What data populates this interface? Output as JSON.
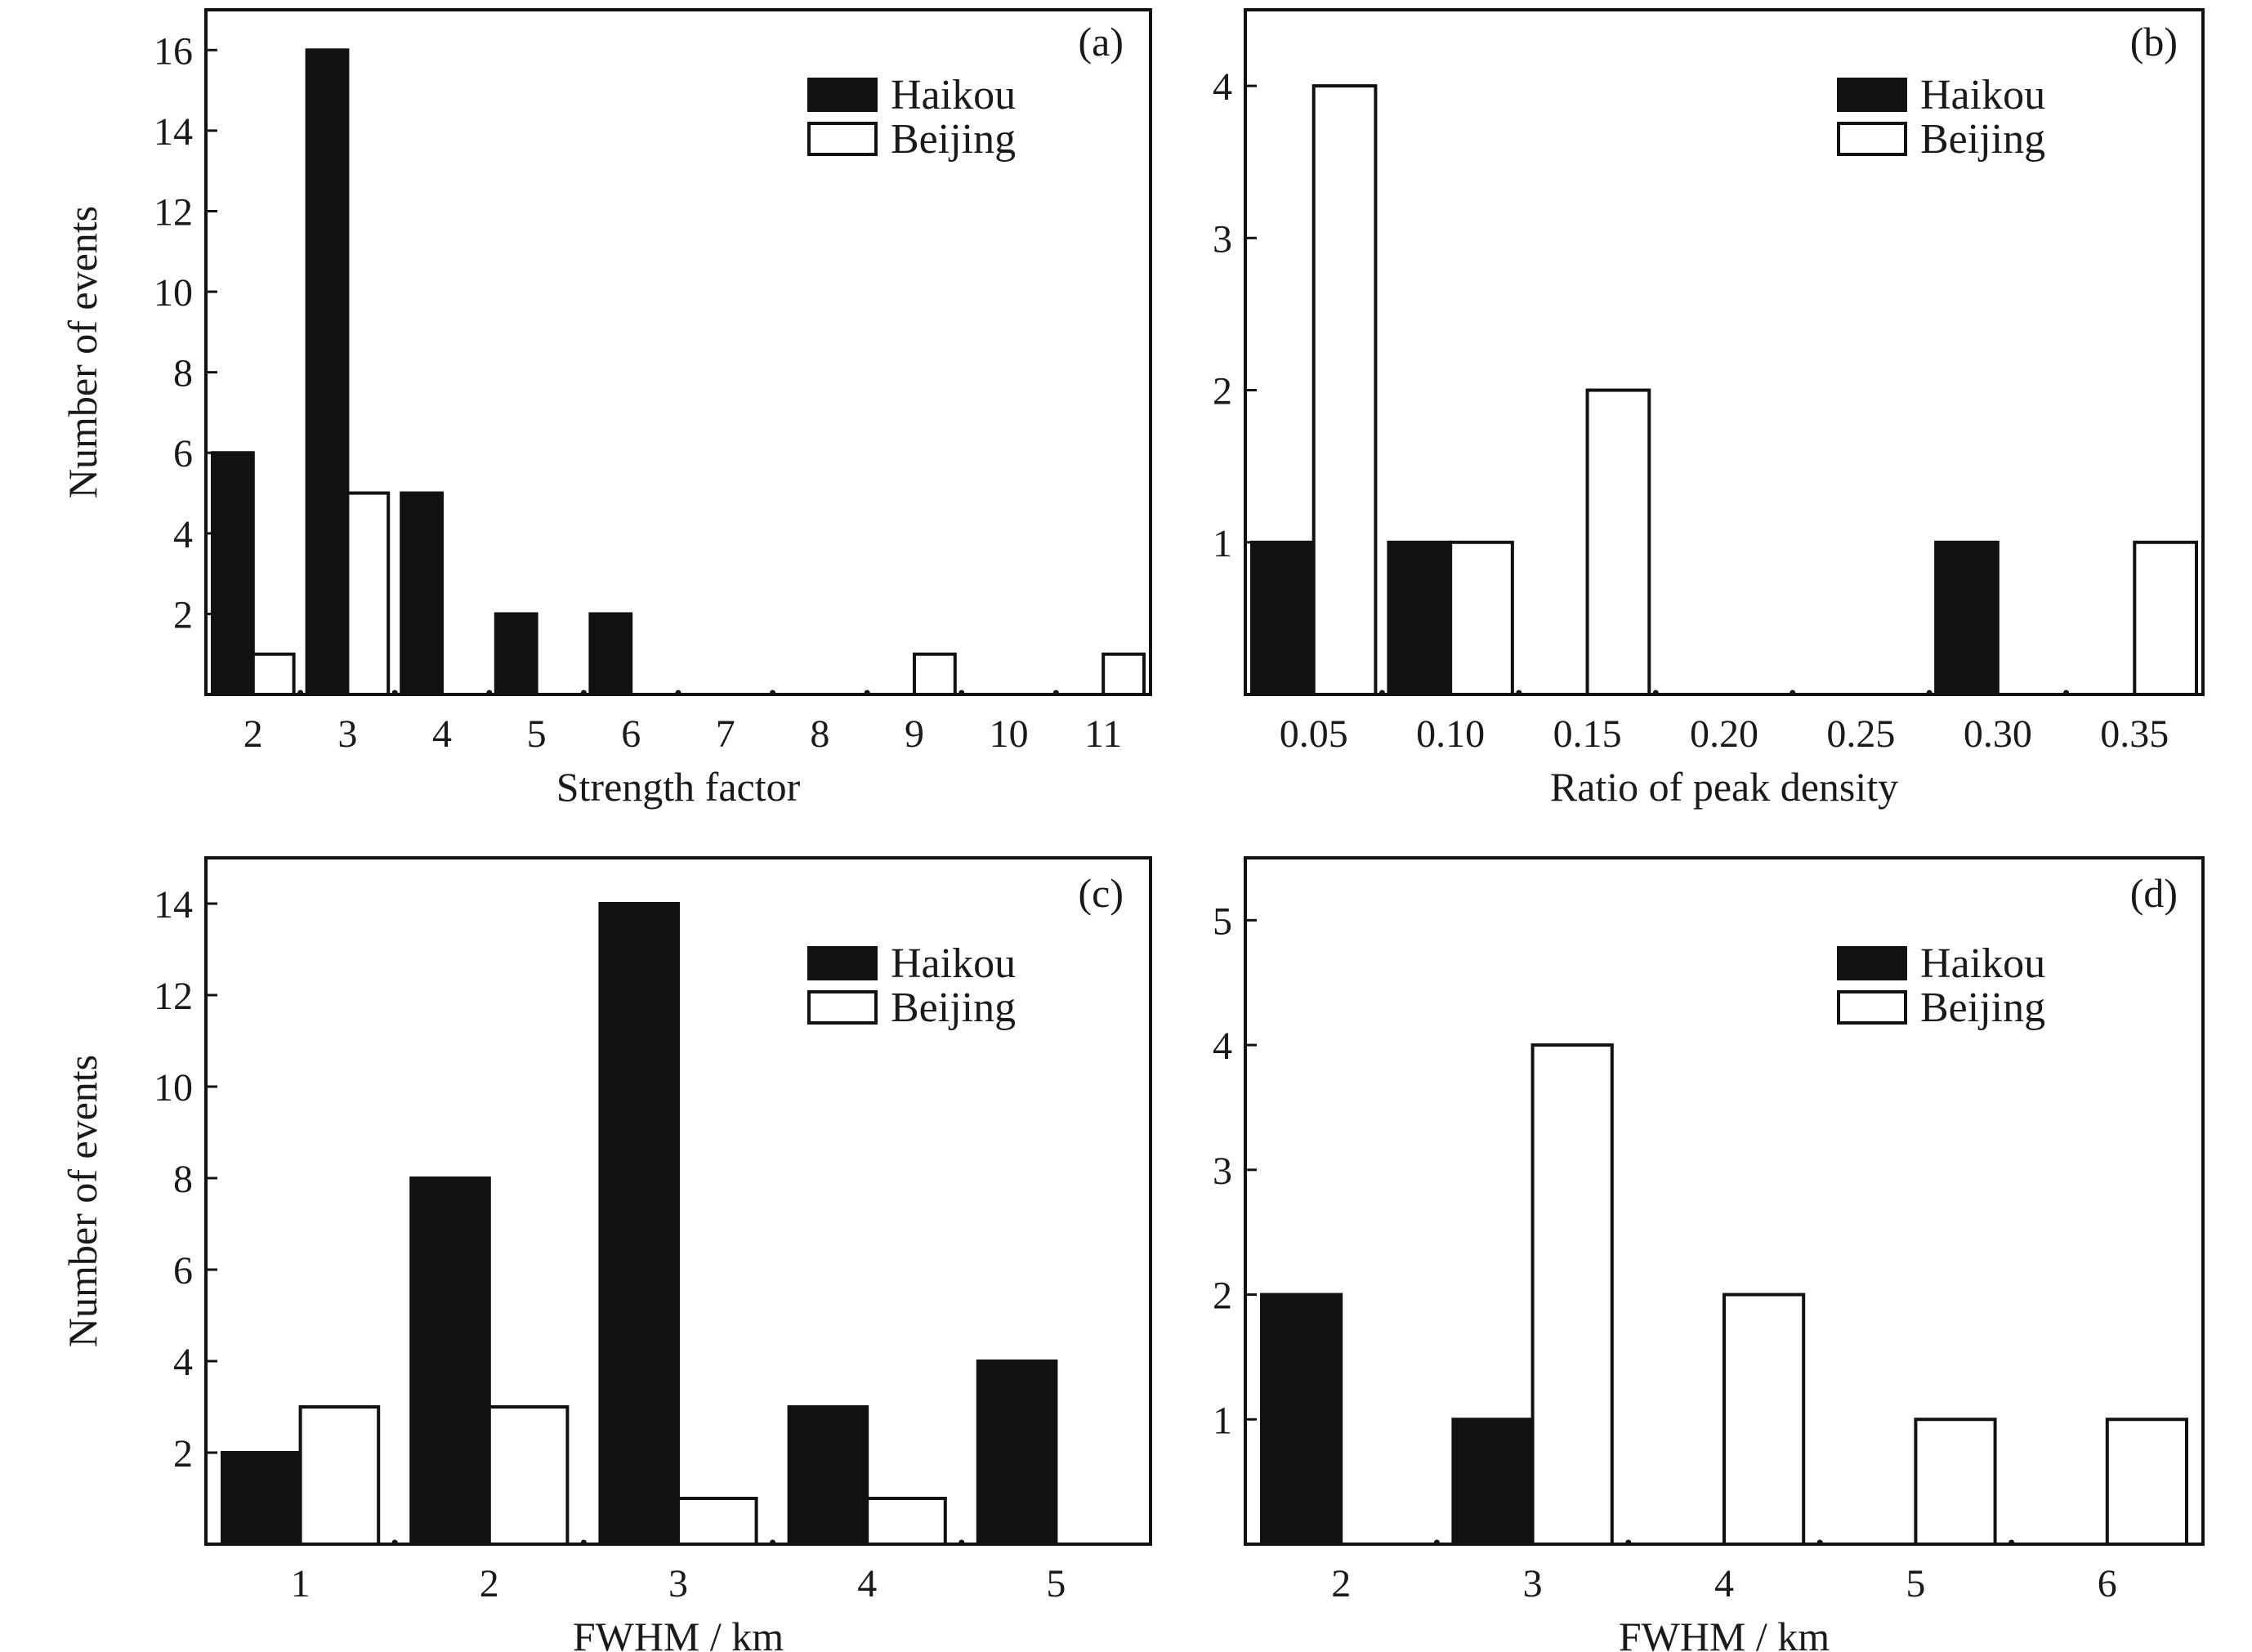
{
  "colors": {
    "haikou": "#111111",
    "beijing": "#ffffff",
    "stroke": "#111111"
  },
  "legend": [
    "Haikou",
    "Beijing"
  ],
  "chart_data": [
    {
      "id": "a",
      "type": "bar",
      "panel_label": "(a)",
      "xlabel": "Strength factor",
      "ylabel": "Number of events",
      "categories": [
        "2",
        "3",
        "4",
        "5",
        "6",
        "7",
        "8",
        "9",
        "10",
        "11"
      ],
      "series": [
        {
          "name": "Haikou",
          "values": [
            6,
            16,
            5,
            2,
            2,
            0,
            0,
            0,
            0,
            0
          ]
        },
        {
          "name": "Beijing",
          "values": [
            1,
            5,
            0,
            0,
            0,
            0,
            0,
            1,
            0,
            1
          ]
        }
      ],
      "ylim": [
        0,
        17
      ],
      "yticks": [
        "2",
        "4",
        "6",
        "8",
        "10",
        "12",
        "14",
        "16"
      ],
      "legend_position": "top-right",
      "grid": false
    },
    {
      "id": "b",
      "type": "bar",
      "panel_label": "(b)",
      "xlabel": "Ratio of peak density",
      "ylabel": "",
      "categories": [
        "0.05",
        "0.10",
        "0.15",
        "0.20",
        "0.25",
        "0.30",
        "0.35"
      ],
      "series": [
        {
          "name": "Haikou",
          "values": [
            1,
            1,
            0,
            0,
            0,
            1,
            0
          ]
        },
        {
          "name": "Beijing",
          "values": [
            4,
            1,
            2,
            0,
            0,
            0,
            1
          ]
        }
      ],
      "ylim": [
        0,
        4.5
      ],
      "yticks": [
        "1",
        "2",
        "3",
        "4"
      ],
      "legend_position": "top-right",
      "grid": false
    },
    {
      "id": "c",
      "type": "bar",
      "panel_label": "(c)",
      "xlabel": "FWHM / km",
      "ylabel": "Number of events",
      "categories": [
        "1",
        "2",
        "3",
        "4",
        "5"
      ],
      "series": [
        {
          "name": "Haikou",
          "values": [
            2,
            8,
            14,
            3,
            4
          ]
        },
        {
          "name": "Beijing",
          "values": [
            3,
            3,
            1,
            1,
            0
          ]
        }
      ],
      "ylim": [
        0,
        15
      ],
      "yticks": [
        "2",
        "4",
        "6",
        "8",
        "10",
        "12",
        "14"
      ],
      "legend_position": "top-right",
      "grid": false
    },
    {
      "id": "d",
      "type": "bar",
      "panel_label": "(d)",
      "xlabel": "FWHM / km",
      "ylabel": "",
      "categories": [
        "2",
        "3",
        "4",
        "5",
        "6"
      ],
      "series": [
        {
          "name": "Haikou",
          "values": [
            2,
            1,
            0,
            0,
            0
          ]
        },
        {
          "name": "Beijing",
          "values": [
            0,
            4,
            2,
            1,
            1
          ]
        }
      ],
      "ylim": [
        0,
        5.5
      ],
      "yticks": [
        "1",
        "2",
        "3",
        "4",
        "5"
      ],
      "legend_position": "top-right",
      "grid": false
    }
  ]
}
